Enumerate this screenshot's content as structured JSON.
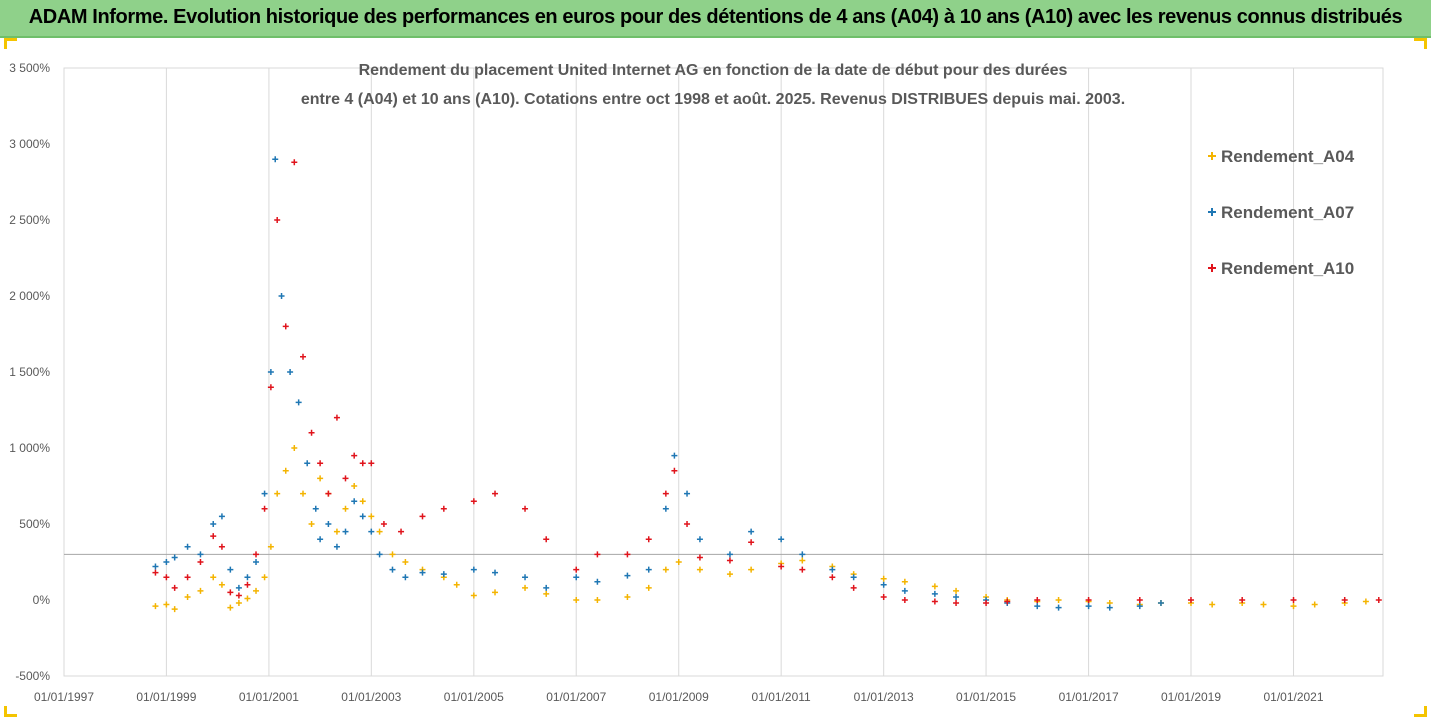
{
  "header": {
    "title": "ADAM Informe. Evolution historique des performances en euros pour des détentions de 4 ans (A04) à 10 ans (A10) avec les revenus connus distribués"
  },
  "colors": {
    "banner": "#8fd18a",
    "accent": "#f4c400",
    "A04": "#f4b400",
    "A07": "#1f77b4",
    "A10": "#e0141c",
    "grid": "#d9d9d9",
    "reference_line": "#a6a6a6"
  },
  "chart_data": {
    "type": "scatter",
    "title_lines": [
      "Rendement du placement United Internet AG en fonction de la date de début pour des durées",
      "entre 4 (A04) et 10 ans (A10). Cotations entre oct 1998 et août. 2025. Revenus DISTRIBUES depuis mai. 2003."
    ],
    "xlabel": "",
    "ylabel": "",
    "x_ticks": [
      "01/01/1997",
      "01/01/1999",
      "01/01/2001",
      "01/01/2003",
      "01/01/2005",
      "01/01/2007",
      "01/01/2009",
      "01/01/2011",
      "01/01/2013",
      "01/01/2015",
      "01/01/2017",
      "01/01/2019",
      "01/01/2021"
    ],
    "y_ticks": [
      "-500%",
      "0%",
      "500%",
      "1 000%",
      "1 500%",
      "2 000%",
      "2 500%",
      "3 000%",
      "3 500%"
    ],
    "y_tick_values": [
      -500,
      0,
      500,
      1000,
      1500,
      2000,
      2500,
      3000,
      3500
    ],
    "ylim": [
      -500,
      3500
    ],
    "xlim": [
      "1997-01-01",
      "2022-10-01"
    ],
    "grid": "vertical",
    "reference_line_y": 300,
    "legend_position": "right",
    "marker": "+",
    "series": [
      {
        "name": "Rendement_A04",
        "color": "#f4b400",
        "points": [
          [
            "1998-10-15",
            -40
          ],
          [
            "1999-01-01",
            -30
          ],
          [
            "1999-03-01",
            -60
          ],
          [
            "1999-06-01",
            20
          ],
          [
            "1999-09-01",
            60
          ],
          [
            "1999-12-01",
            150
          ],
          [
            "2000-02-01",
            100
          ],
          [
            "2000-04-01",
            -50
          ],
          [
            "2000-06-01",
            -20
          ],
          [
            "2000-08-01",
            10
          ],
          [
            "2000-10-01",
            60
          ],
          [
            "2000-12-01",
            150
          ],
          [
            "2001-01-15",
            350
          ],
          [
            "2001-03-01",
            700
          ],
          [
            "2001-05-01",
            850
          ],
          [
            "2001-07-01",
            1000
          ],
          [
            "2001-09-01",
            700
          ],
          [
            "2001-11-01",
            500
          ],
          [
            "2002-01-01",
            800
          ],
          [
            "2002-03-01",
            700
          ],
          [
            "2002-05-01",
            450
          ],
          [
            "2002-07-01",
            600
          ],
          [
            "2002-09-01",
            750
          ],
          [
            "2002-11-01",
            650
          ],
          [
            "2003-01-01",
            550
          ],
          [
            "2003-03-01",
            450
          ],
          [
            "2003-06-01",
            300
          ],
          [
            "2003-09-01",
            250
          ],
          [
            "2004-01-01",
            200
          ],
          [
            "2004-06-01",
            150
          ],
          [
            "2004-09-01",
            100
          ],
          [
            "2005-01-01",
            30
          ],
          [
            "2005-06-01",
            50
          ],
          [
            "2006-01-01",
            80
          ],
          [
            "2006-06-01",
            40
          ],
          [
            "2007-01-01",
            0
          ],
          [
            "2007-06-01",
            0
          ],
          [
            "2008-01-01",
            20
          ],
          [
            "2008-06-01",
            80
          ],
          [
            "2008-10-01",
            200
          ],
          [
            "2009-01-01",
            250
          ],
          [
            "2009-06-01",
            200
          ],
          [
            "2010-01-01",
            170
          ],
          [
            "2010-06-01",
            200
          ],
          [
            "2011-01-01",
            240
          ],
          [
            "2011-06-01",
            260
          ],
          [
            "2012-01-01",
            220
          ],
          [
            "2012-06-01",
            170
          ],
          [
            "2013-01-01",
            140
          ],
          [
            "2013-06-01",
            120
          ],
          [
            "2014-01-01",
            90
          ],
          [
            "2014-06-01",
            60
          ],
          [
            "2015-01-01",
            20
          ],
          [
            "2015-06-01",
            0
          ],
          [
            "2016-01-01",
            -10
          ],
          [
            "2016-06-01",
            0
          ],
          [
            "2017-01-01",
            -10
          ],
          [
            "2017-06-01",
            -20
          ],
          [
            "2018-01-01",
            -30
          ],
          [
            "2018-06-01",
            -20
          ],
          [
            "2019-01-01",
            -20
          ],
          [
            "2019-06-01",
            -30
          ],
          [
            "2020-01-01",
            -20
          ],
          [
            "2020-06-01",
            -30
          ],
          [
            "2021-01-01",
            -40
          ],
          [
            "2021-06-01",
            -30
          ],
          [
            "2022-01-01",
            -20
          ],
          [
            "2022-06-01",
            -10
          ]
        ]
      },
      {
        "name": "Rendement_A07",
        "color": "#1f77b4",
        "points": [
          [
            "1998-10-15",
            220
          ],
          [
            "1999-01-01",
            250
          ],
          [
            "1999-03-01",
            280
          ],
          [
            "1999-06-01",
            350
          ],
          [
            "1999-09-01",
            300
          ],
          [
            "1999-12-01",
            500
          ],
          [
            "2000-02-01",
            550
          ],
          [
            "2000-04-01",
            200
          ],
          [
            "2000-06-01",
            80
          ],
          [
            "2000-08-01",
            150
          ],
          [
            "2000-10-01",
            250
          ],
          [
            "2000-12-01",
            700
          ],
          [
            "2001-01-15",
            1500
          ],
          [
            "2001-02-15",
            2900
          ],
          [
            "2001-04-01",
            2000
          ],
          [
            "2001-06-01",
            1500
          ],
          [
            "2001-08-01",
            1300
          ],
          [
            "2001-10-01",
            900
          ],
          [
            "2001-12-01",
            600
          ],
          [
            "2002-01-01",
            400
          ],
          [
            "2002-03-01",
            500
          ],
          [
            "2002-05-01",
            350
          ],
          [
            "2002-07-01",
            450
          ],
          [
            "2002-09-01",
            650
          ],
          [
            "2002-11-01",
            550
          ],
          [
            "2003-01-01",
            450
          ],
          [
            "2003-03-01",
            300
          ],
          [
            "2003-06-01",
            200
          ],
          [
            "2003-09-01",
            150
          ],
          [
            "2004-01-01",
            180
          ],
          [
            "2004-06-01",
            170
          ],
          [
            "2005-01-01",
            200
          ],
          [
            "2005-06-01",
            180
          ],
          [
            "2006-01-01",
            150
          ],
          [
            "2006-06-01",
            80
          ],
          [
            "2007-01-01",
            150
          ],
          [
            "2007-06-01",
            120
          ],
          [
            "2008-01-01",
            160
          ],
          [
            "2008-06-01",
            200
          ],
          [
            "2008-10-01",
            600
          ],
          [
            "2008-12-01",
            950
          ],
          [
            "2009-03-01",
            700
          ],
          [
            "2009-06-01",
            400
          ],
          [
            "2010-01-01",
            300
          ],
          [
            "2010-06-01",
            450
          ],
          [
            "2011-01-01",
            400
          ],
          [
            "2011-06-01",
            300
          ],
          [
            "2012-01-01",
            200
          ],
          [
            "2012-06-01",
            150
          ],
          [
            "2013-01-01",
            100
          ],
          [
            "2013-06-01",
            60
          ],
          [
            "2014-01-01",
            40
          ],
          [
            "2014-06-01",
            20
          ],
          [
            "2015-01-01",
            0
          ],
          [
            "2015-06-01",
            -20
          ],
          [
            "2016-01-01",
            -40
          ],
          [
            "2016-06-01",
            -50
          ],
          [
            "2017-01-01",
            -40
          ],
          [
            "2017-06-01",
            -50
          ],
          [
            "2018-01-01",
            -40
          ],
          [
            "2018-06-01",
            -20
          ]
        ]
      },
      {
        "name": "Rendement_A10",
        "color": "#e0141c",
        "points": [
          [
            "1998-10-15",
            180
          ],
          [
            "1999-01-01",
            150
          ],
          [
            "1999-03-01",
            80
          ],
          [
            "1999-06-01",
            150
          ],
          [
            "1999-09-01",
            250
          ],
          [
            "1999-12-01",
            420
          ],
          [
            "2000-02-01",
            350
          ],
          [
            "2000-04-01",
            50
          ],
          [
            "2000-06-01",
            30
          ],
          [
            "2000-08-01",
            100
          ],
          [
            "2000-10-01",
            300
          ],
          [
            "2000-12-01",
            600
          ],
          [
            "2001-01-15",
            1400
          ],
          [
            "2001-03-01",
            2500
          ],
          [
            "2001-05-01",
            1800
          ],
          [
            "2001-07-01",
            2880
          ],
          [
            "2001-09-01",
            1600
          ],
          [
            "2001-11-01",
            1100
          ],
          [
            "2002-01-01",
            900
          ],
          [
            "2002-03-01",
            700
          ],
          [
            "2002-05-01",
            1200
          ],
          [
            "2002-07-01",
            800
          ],
          [
            "2002-09-01",
            950
          ],
          [
            "2002-11-01",
            900
          ],
          [
            "2003-01-01",
            900
          ],
          [
            "2003-04-01",
            500
          ],
          [
            "2003-08-01",
            450
          ],
          [
            "2004-01-01",
            550
          ],
          [
            "2004-06-01",
            600
          ],
          [
            "2005-01-01",
            650
          ],
          [
            "2005-06-01",
            700
          ],
          [
            "2006-01-01",
            600
          ],
          [
            "2006-06-01",
            400
          ],
          [
            "2007-01-01",
            200
          ],
          [
            "2007-06-01",
            300
          ],
          [
            "2008-01-01",
            300
          ],
          [
            "2008-06-01",
            400
          ],
          [
            "2008-10-01",
            700
          ],
          [
            "2008-12-01",
            850
          ],
          [
            "2009-03-01",
            500
          ],
          [
            "2009-06-01",
            280
          ],
          [
            "2010-01-01",
            260
          ],
          [
            "2010-06-01",
            380
          ],
          [
            "2011-01-01",
            220
          ],
          [
            "2011-06-01",
            200
          ],
          [
            "2012-01-01",
            150
          ],
          [
            "2012-06-01",
            80
          ],
          [
            "2013-01-01",
            20
          ],
          [
            "2013-06-01",
            0
          ],
          [
            "2014-01-01",
            -10
          ],
          [
            "2014-06-01",
            -20
          ],
          [
            "2015-01-01",
            -20
          ],
          [
            "2015-06-01",
            -10
          ],
          [
            "2016-01-01",
            0
          ],
          [
            "2017-01-01",
            0
          ],
          [
            "2018-01-01",
            0
          ],
          [
            "2019-01-01",
            0
          ],
          [
            "2020-01-01",
            0
          ],
          [
            "2021-01-01",
            0
          ],
          [
            "2022-01-01",
            0
          ],
          [
            "2022-09-01",
            0
          ]
        ]
      }
    ]
  }
}
